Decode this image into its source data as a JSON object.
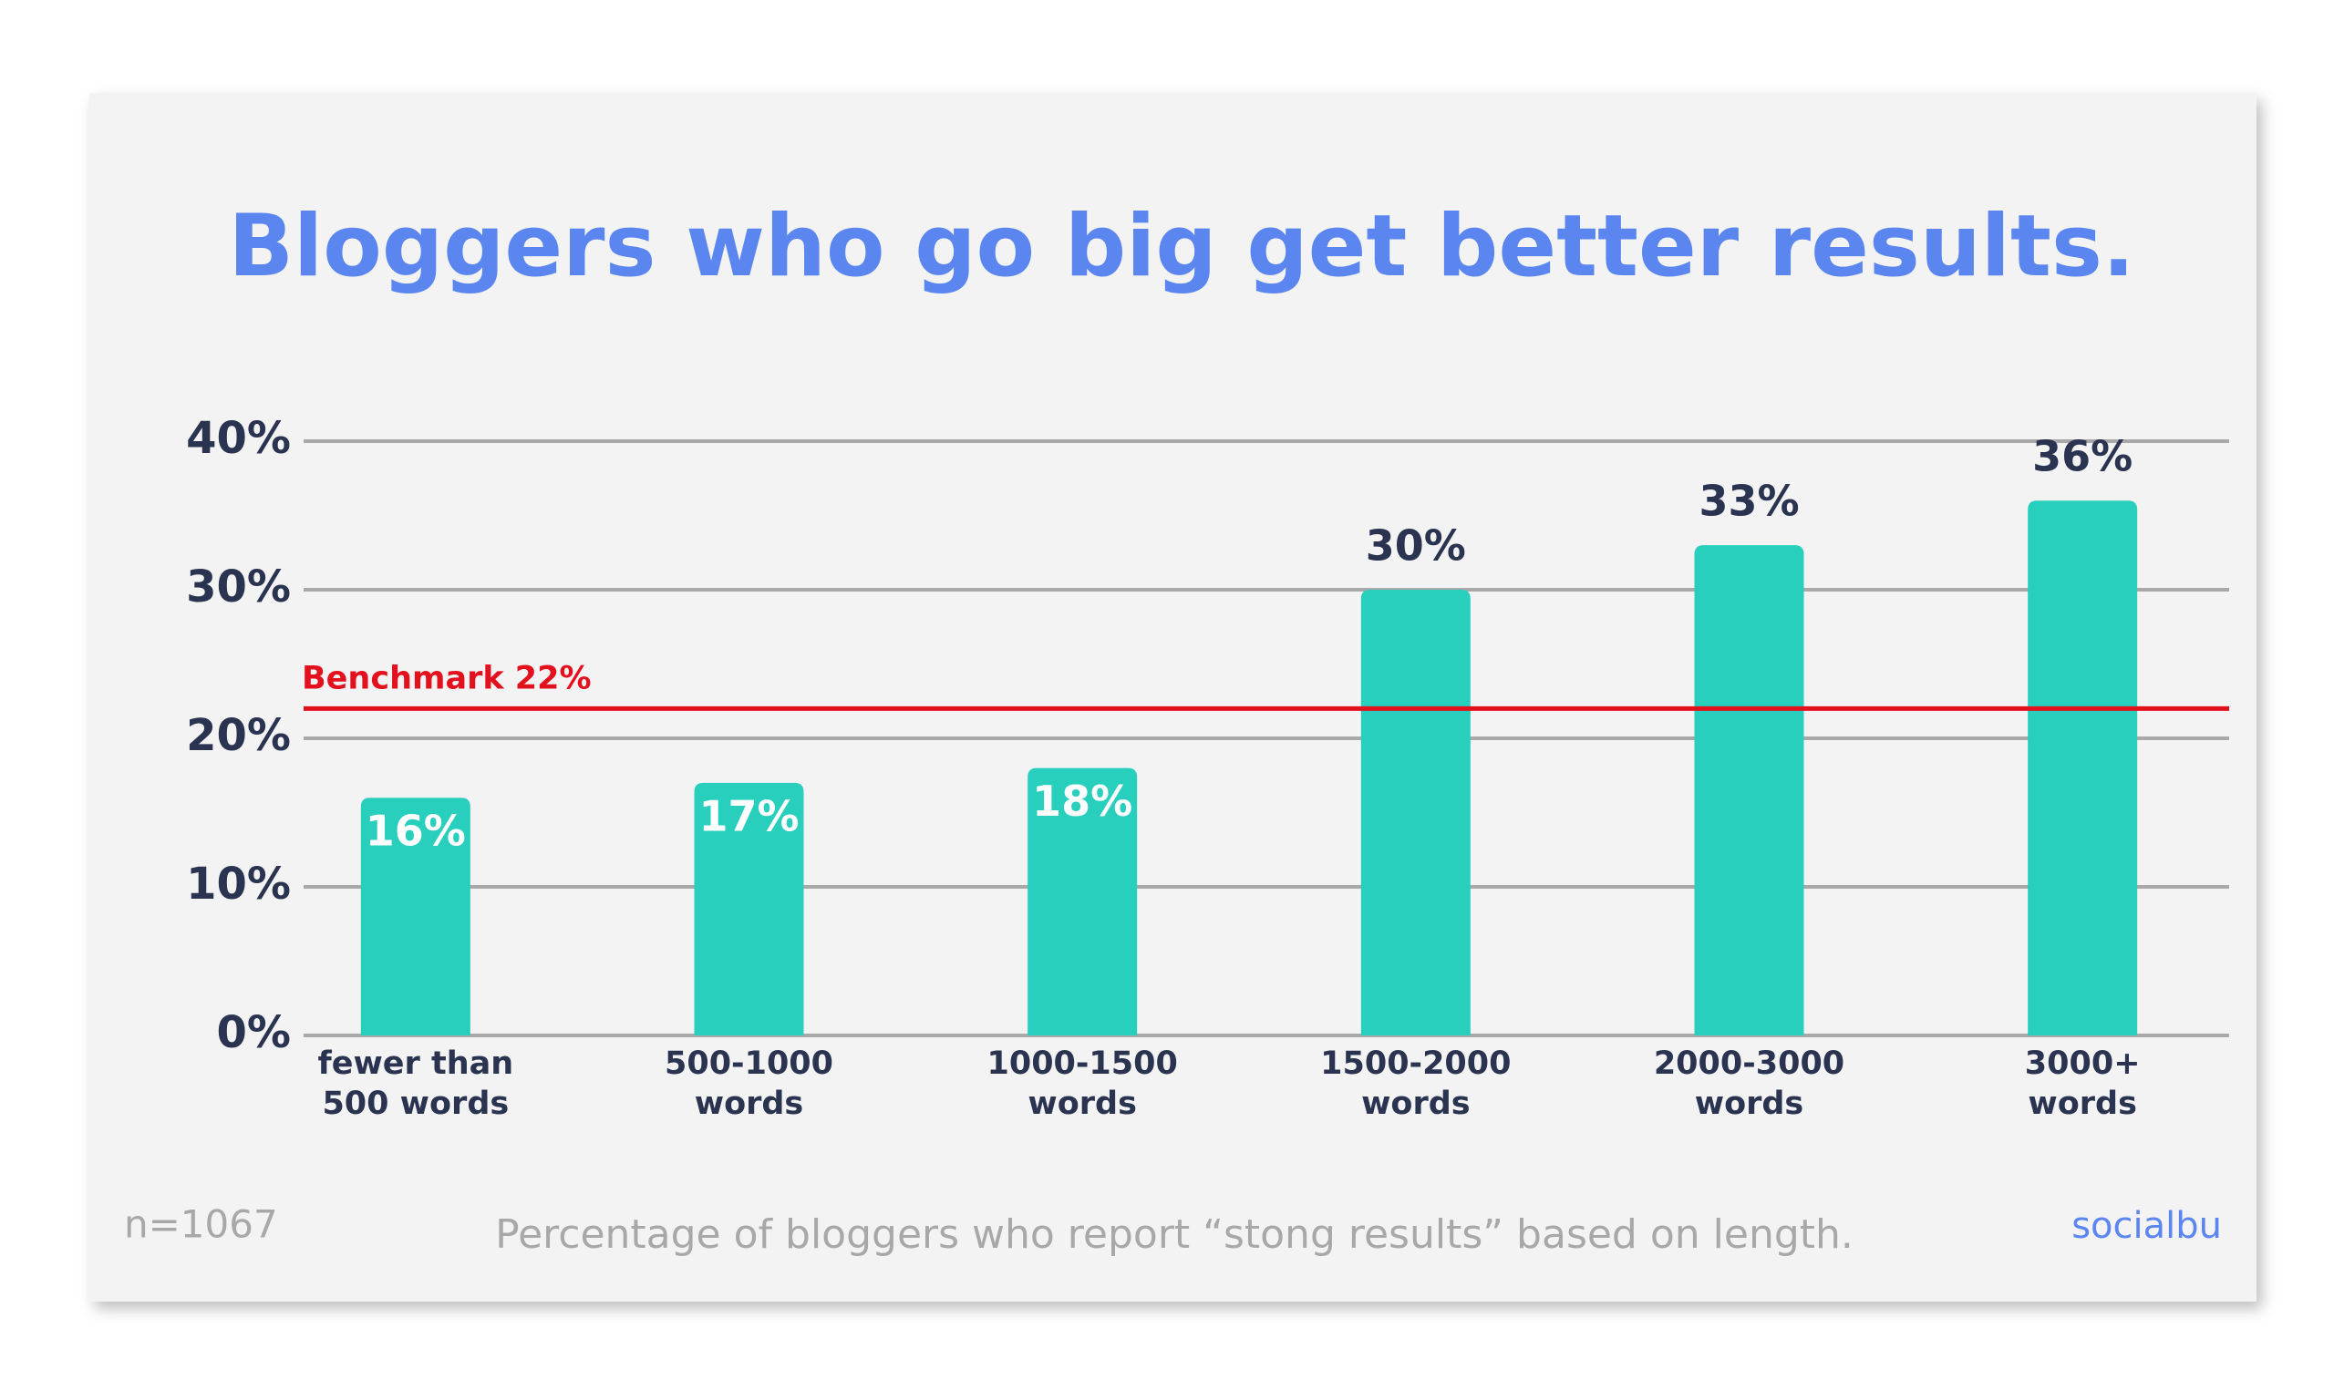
{
  "chart_data": {
    "type": "bar",
    "title": "Bloggers who go big get better results.",
    "categories": [
      "fewer than\n500 words",
      "500-1000\nwords",
      "1000-1500\nwords",
      "1500-2000\nwords",
      "2000-3000\nwords",
      "3000+\nwords"
    ],
    "values": [
      16,
      17,
      18,
      30,
      33,
      36
    ],
    "value_labels": [
      "16%",
      "17%",
      "18%",
      "30%",
      "33%",
      "36%"
    ],
    "color": "#29cfbd",
    "ylim": [
      0,
      40
    ],
    "yticks": [
      {
        "value": 0,
        "label": "0%"
      },
      {
        "value": 10,
        "label": "10%"
      },
      {
        "value": 20,
        "label": "20%"
      },
      {
        "value": 30,
        "label": "30%"
      },
      {
        "value": 40,
        "label": "40%"
      }
    ],
    "grid": true,
    "benchmark": {
      "value": 22,
      "label": "Benchmark 22%",
      "color": "#e3101e"
    },
    "footnote": "n=1067",
    "caption": "Percentage of bloggers who report “stong results” based on length.",
    "brand": "socialbu"
  }
}
